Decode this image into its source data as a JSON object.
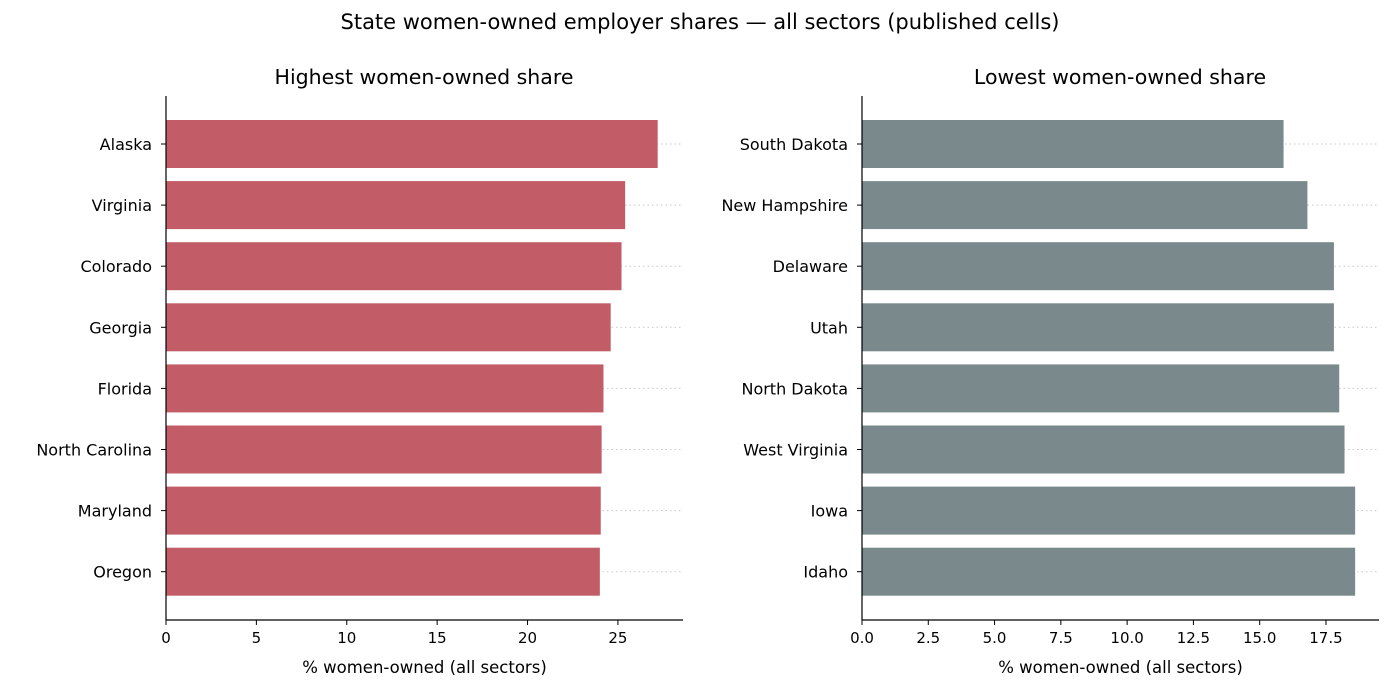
{
  "suptitle": "State women-owned employer shares — all sectors (published cells)",
  "chart_data": [
    {
      "type": "bar",
      "orientation": "horizontal",
      "title": "Highest women-owned share",
      "xlabel": "% women-owned (all sectors)",
      "categories": [
        "Alaska",
        "Virginia",
        "Colorado",
        "Georgia",
        "Florida",
        "North Carolina",
        "Maryland",
        "Oregon"
      ],
      "values": [
        27.2,
        25.4,
        25.2,
        24.6,
        24.2,
        24.1,
        24.05,
        24.0
      ],
      "xlim": [
        0,
        28.6
      ],
      "xticks": [
        0,
        5,
        10,
        15,
        20,
        25
      ],
      "xtick_labels": [
        "0",
        "5",
        "10",
        "15",
        "20",
        "25"
      ],
      "color": "#c25d68",
      "grid": "x-dotted-at-categories"
    },
    {
      "type": "bar",
      "orientation": "horizontal",
      "title": "Lowest women-owned share",
      "xlabel": "% women-owned (all sectors)",
      "categories": [
        "South Dakota",
        "New Hampshire",
        "Delaware",
        "Utah",
        "North Dakota",
        "West Virginia",
        "Iowa",
        "Idaho"
      ],
      "values": [
        15.9,
        16.8,
        17.8,
        17.8,
        18.0,
        18.2,
        18.6,
        18.6
      ],
      "xlim": [
        0,
        19.5
      ],
      "xticks": [
        0,
        2.5,
        5,
        7.5,
        10,
        12.5,
        15,
        17.5
      ],
      "xtick_labels": [
        "0.0",
        "2.5",
        "5.0",
        "7.5",
        "10.0",
        "12.5",
        "15.0",
        "17.5"
      ],
      "color": "#7a8a8c",
      "grid": "x-dotted-at-categories"
    }
  ]
}
